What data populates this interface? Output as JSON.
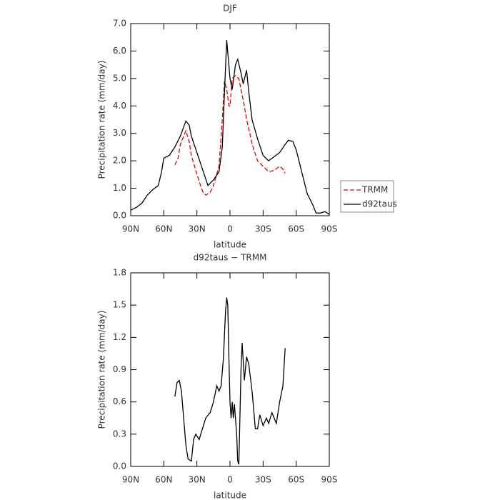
{
  "chart_data": [
    {
      "type": "line",
      "title": "DJF",
      "xlabel": "latitude",
      "ylabel": "Precipitation rate (mm/day)",
      "xlim": [
        90,
        -90
      ],
      "xticks": [
        {
          "value": 90,
          "label": "90N"
        },
        {
          "value": 60,
          "label": "60N"
        },
        {
          "value": 30,
          "label": "30N"
        },
        0,
        {
          "value": -30,
          "label": "30S"
        },
        {
          "value": -60,
          "label": "60S"
        },
        {
          "value": -90,
          "label": "90S"
        }
      ],
      "ylim": [
        0,
        7
      ],
      "yticks": [
        {
          "value": 0,
          "label": "0.0"
        },
        {
          "value": 1,
          "label": "1.0"
        },
        {
          "value": 2,
          "label": "2.0"
        },
        {
          "value": 3,
          "label": "3.0"
        },
        {
          "value": 4,
          "label": "4.0"
        },
        {
          "value": 5,
          "label": "5.0"
        },
        {
          "value": 6,
          "label": "6.0"
        },
        {
          "value": 7,
          "label": "7.0"
        }
      ],
      "legend": "right",
      "series": [
        {
          "name": "TRMM",
          "color": "#e00000",
          "dash": true,
          "x": [
            50,
            47,
            45,
            40,
            37,
            35,
            30,
            25,
            22,
            18,
            15,
            10,
            7,
            5,
            3,
            1,
            0,
            -2,
            -5,
            -8,
            -10,
            -13,
            -15,
            -18,
            -20,
            -25,
            -30,
            -35,
            -40,
            -45,
            -48,
            -50
          ],
          "values": [
            1.85,
            2.1,
            2.6,
            3.1,
            2.7,
            2.2,
            1.5,
            0.9,
            0.75,
            0.85,
            1.1,
            1.8,
            3.5,
            4.9,
            4.6,
            4.0,
            4.0,
            5.0,
            5.1,
            5.0,
            4.6,
            4.0,
            3.5,
            3.0,
            2.6,
            2.0,
            1.8,
            1.6,
            1.65,
            1.8,
            1.7,
            1.55
          ]
        },
        {
          "name": "d92taus",
          "color": "#000000",
          "dash": false,
          "x": [
            90,
            85,
            80,
            75,
            70,
            65,
            62,
            60,
            55,
            50,
            45,
            40,
            37,
            35,
            30,
            25,
            20,
            15,
            10,
            7,
            5,
            3,
            0,
            -2,
            -5,
            -7,
            -10,
            -12,
            -15,
            -17,
            -20,
            -25,
            -30,
            -35,
            -40,
            -45,
            -50,
            -53,
            -57,
            -60,
            -65,
            -70,
            -75,
            -78,
            -82,
            -86,
            -90
          ],
          "values": [
            0.2,
            0.3,
            0.45,
            0.75,
            0.95,
            1.1,
            1.6,
            2.1,
            2.2,
            2.5,
            2.9,
            3.45,
            3.3,
            2.9,
            2.3,
            1.7,
            1.1,
            1.3,
            1.6,
            2.5,
            4.5,
            6.4,
            5.0,
            4.6,
            5.5,
            5.7,
            5.2,
            4.8,
            5.3,
            4.5,
            3.5,
            2.8,
            2.2,
            2.0,
            2.15,
            2.3,
            2.6,
            2.75,
            2.7,
            2.4,
            1.6,
            0.8,
            0.4,
            0.1,
            0.1,
            0.15,
            0.05
          ]
        }
      ]
    },
    {
      "type": "line",
      "title": "d92taus − TRMM",
      "xlabel": "latitude",
      "ylabel": "Precipitation rate (mm/day)",
      "xlim": [
        90,
        -90
      ],
      "xticks": [
        {
          "value": 90,
          "label": "90N"
        },
        {
          "value": 60,
          "label": "60N"
        },
        {
          "value": 30,
          "label": "30N"
        },
        0,
        {
          "value": -30,
          "label": "30S"
        },
        {
          "value": -60,
          "label": "60S"
        },
        {
          "value": -90,
          "label": "90S"
        }
      ],
      "ylim": [
        0,
        1.8
      ],
      "yticks": [
        {
          "value": 0,
          "label": "0.0"
        },
        0.3,
        0.6,
        0.9,
        1.2,
        1.5,
        1.8
      ],
      "series": [
        {
          "color": "#000000",
          "x": [
            50,
            48,
            46,
            44,
            42,
            40,
            38,
            35,
            33,
            31,
            28,
            25,
            22,
            18,
            15,
            12,
            10,
            8,
            6,
            4,
            3,
            2,
            1,
            0,
            -1,
            -2,
            -3,
            -4,
            -6,
            -7,
            -8,
            -10,
            -11,
            -13,
            -15,
            -17,
            -20,
            -23,
            -25,
            -27,
            -30,
            -33,
            -35,
            -38,
            -42,
            -45,
            -48,
            -50
          ],
          "values": [
            0.65,
            0.78,
            0.8,
            0.7,
            0.45,
            0.2,
            0.07,
            0.05,
            0.25,
            0.3,
            0.25,
            0.35,
            0.45,
            0.5,
            0.6,
            0.75,
            0.7,
            0.75,
            1.0,
            1.45,
            1.57,
            1.5,
            1.0,
            0.6,
            0.45,
            0.6,
            0.45,
            0.58,
            0.3,
            0.05,
            0.02,
            0.9,
            1.15,
            0.8,
            1.02,
            0.95,
            0.7,
            0.35,
            0.35,
            0.48,
            0.38,
            0.45,
            0.4,
            0.5,
            0.4,
            0.6,
            0.75,
            1.1
          ]
        }
      ]
    }
  ]
}
